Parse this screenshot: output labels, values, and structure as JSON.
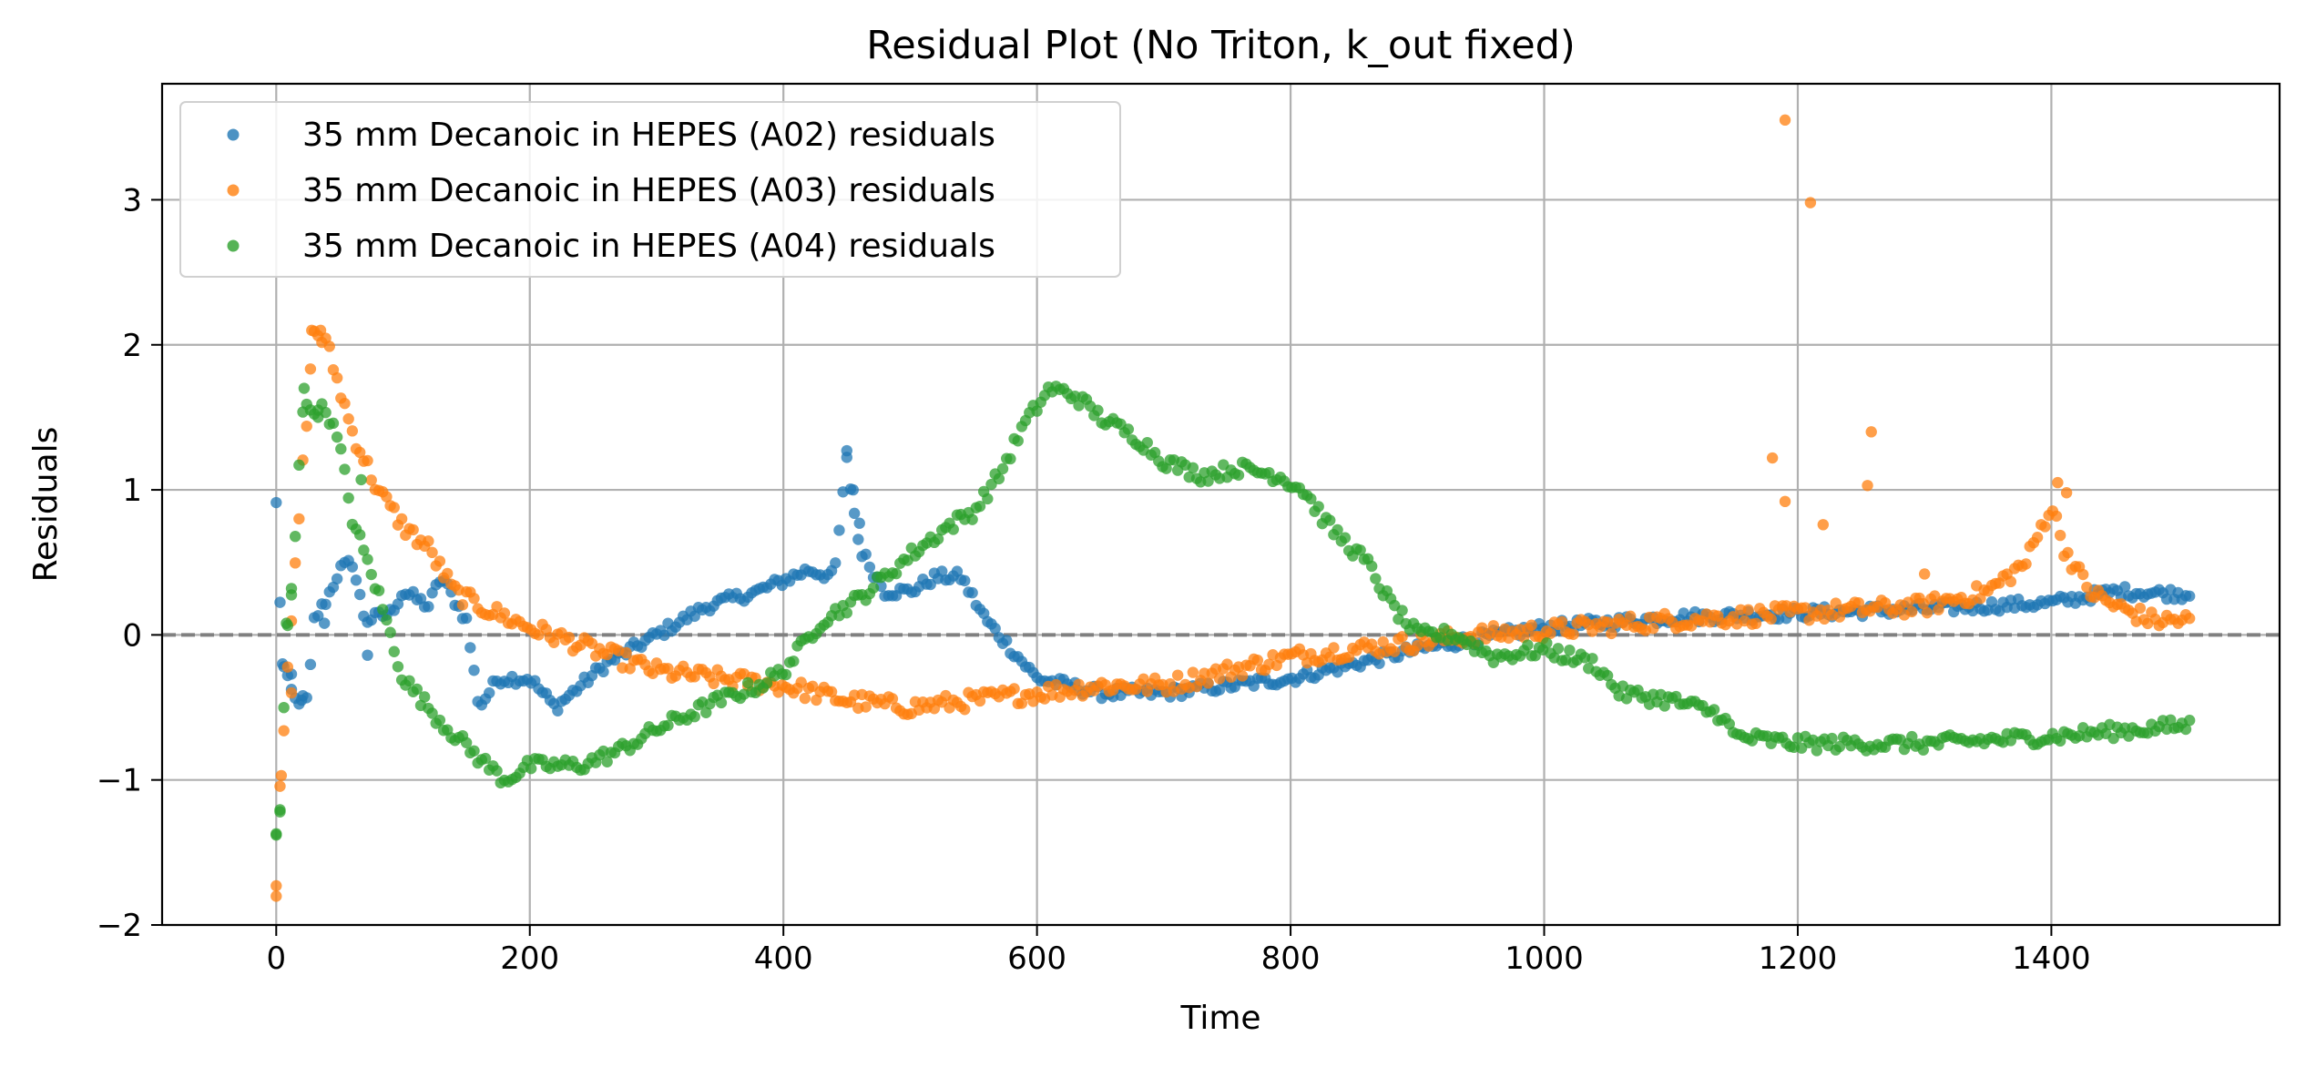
{
  "chart_data": {
    "type": "scatter",
    "title": "Residual Plot (No Triton, k_out fixed)",
    "xlabel": "Time",
    "ylabel": "Residuals",
    "xlim": [
      -90,
      1580
    ],
    "ylim": [
      -2,
      3.8
    ],
    "xticks": [
      0,
      200,
      400,
      600,
      800,
      1000,
      1200,
      1400
    ],
    "yticks": [
      -2,
      -1,
      0,
      1,
      2,
      3
    ],
    "xtick_labels": [
      "0",
      "200",
      "400",
      "600",
      "800",
      "1000",
      "1200",
      "1400"
    ],
    "ytick_labels": [
      "−2",
      "−1",
      "0",
      "1",
      "2",
      "3"
    ],
    "grid": true,
    "legend_position": "top-left",
    "reference_line": {
      "y": 0,
      "style": "dashed",
      "color": "#808080"
    },
    "series": [
      {
        "name": "35 mm Decanoic in HEPES (A02) residuals",
        "color": "#1f77b4",
        "knots": [
          [
            0,
            0.9
          ],
          [
            5,
            -0.2
          ],
          [
            10,
            -0.35
          ],
          [
            15,
            -0.45
          ],
          [
            25,
            -0.45
          ],
          [
            30,
            0.1
          ],
          [
            40,
            0.25
          ],
          [
            50,
            0.45
          ],
          [
            60,
            0.5
          ],
          [
            70,
            0.1
          ],
          [
            90,
            0.15
          ],
          [
            100,
            0.3
          ],
          [
            120,
            0.2
          ],
          [
            130,
            0.4
          ],
          [
            150,
            0.1
          ],
          [
            160,
            -0.5
          ],
          [
            175,
            -0.3
          ],
          [
            200,
            -0.3
          ],
          [
            220,
            -0.5
          ],
          [
            260,
            -0.2
          ],
          [
            300,
            0.0
          ],
          [
            340,
            0.2
          ],
          [
            380,
            0.3
          ],
          [
            420,
            0.45
          ],
          [
            440,
            0.4
          ],
          [
            450,
            1.2
          ],
          [
            460,
            0.6
          ],
          [
            480,
            0.3
          ],
          [
            500,
            0.3
          ],
          [
            520,
            0.4
          ],
          [
            540,
            0.4
          ],
          [
            560,
            0.1
          ],
          [
            580,
            -0.1
          ],
          [
            600,
            -0.3
          ],
          [
            650,
            -0.4
          ],
          [
            700,
            -0.4
          ],
          [
            800,
            -0.3
          ],
          [
            900,
            -0.1
          ],
          [
            950,
            -0.02
          ],
          [
            1000,
            0.05
          ],
          [
            1100,
            0.12
          ],
          [
            1200,
            0.15
          ],
          [
            1300,
            0.18
          ],
          [
            1400,
            0.22
          ],
          [
            1450,
            0.3
          ],
          [
            1510,
            0.28
          ]
        ],
        "noise": 0.04,
        "outliers": [
          [
            450,
            1.27
          ],
          [
            455,
            1.0
          ],
          [
            460,
            0.77
          ],
          [
            5,
            -0.2
          ],
          [
            12,
            -0.27
          ],
          [
            20,
            -0.45
          ],
          [
            38,
            0.08
          ],
          [
            72,
            -0.14
          ]
        ]
      },
      {
        "name": "35 mm Decanoic in HEPES (A03) residuals",
        "color": "#ff7f0e",
        "knots": [
          [
            0,
            -1.75
          ],
          [
            3,
            -1.0
          ],
          [
            8,
            -0.4
          ],
          [
            15,
            0.45
          ],
          [
            20,
            1.05
          ],
          [
            25,
            1.6
          ],
          [
            30,
            2.1
          ],
          [
            40,
            2.0
          ],
          [
            50,
            1.7
          ],
          [
            60,
            1.4
          ],
          [
            80,
            1.0
          ],
          [
            100,
            0.75
          ],
          [
            120,
            0.6
          ],
          [
            140,
            0.3
          ],
          [
            160,
            0.2
          ],
          [
            200,
            0.05
          ],
          [
            250,
            -0.1
          ],
          [
            300,
            -0.25
          ],
          [
            350,
            -0.3
          ],
          [
            400,
            -0.35
          ],
          [
            450,
            -0.45
          ],
          [
            500,
            -0.5
          ],
          [
            550,
            -0.45
          ],
          [
            600,
            -0.4
          ],
          [
            650,
            -0.35
          ],
          [
            700,
            -0.35
          ],
          [
            750,
            -0.25
          ],
          [
            800,
            -0.15
          ],
          [
            850,
            -0.1
          ],
          [
            900,
            -0.05
          ],
          [
            950,
            0.0
          ],
          [
            1000,
            0.03
          ],
          [
            1100,
            0.1
          ],
          [
            1200,
            0.15
          ],
          [
            1300,
            0.2
          ],
          [
            1350,
            0.3
          ],
          [
            1380,
            0.5
          ],
          [
            1400,
            0.9
          ],
          [
            1410,
            0.6
          ],
          [
            1430,
            0.3
          ],
          [
            1450,
            0.2
          ],
          [
            1480,
            0.1
          ],
          [
            1510,
            0.1
          ]
        ],
        "noise": 0.06,
        "outliers": [
          [
            1190,
            3.55
          ],
          [
            1210,
            2.98
          ],
          [
            1180,
            1.22
          ],
          [
            1190,
            0.92
          ],
          [
            1220,
            0.76
          ],
          [
            1258,
            1.4
          ],
          [
            1255,
            1.03
          ],
          [
            1300,
            0.42
          ],
          [
            1405,
            1.05
          ],
          [
            1412,
            0.98
          ],
          [
            0,
            -1.73
          ],
          [
            4,
            -0.97
          ],
          [
            12,
            -0.4
          ],
          [
            28,
            2.1
          ],
          [
            35,
            2.1
          ]
        ]
      },
      {
        "name": "35 mm Decanoic in HEPES (A04) residuals",
        "color": "#2ca02c",
        "knots": [
          [
            0,
            -1.4
          ],
          [
            3,
            -1.2
          ],
          [
            8,
            -0.05
          ],
          [
            12,
            0.3
          ],
          [
            15,
            0.7
          ],
          [
            20,
            1.55
          ],
          [
            30,
            1.55
          ],
          [
            40,
            1.55
          ],
          [
            50,
            1.3
          ],
          [
            60,
            0.8
          ],
          [
            80,
            0.3
          ],
          [
            100,
            -0.3
          ],
          [
            130,
            -0.6
          ],
          [
            160,
            -0.85
          ],
          [
            180,
            -1.0
          ],
          [
            200,
            -0.9
          ],
          [
            240,
            -0.9
          ],
          [
            270,
            -0.8
          ],
          [
            300,
            -0.65
          ],
          [
            350,
            -0.45
          ],
          [
            380,
            -0.35
          ],
          [
            400,
            -0.25
          ],
          [
            430,
            0.1
          ],
          [
            460,
            0.25
          ],
          [
            480,
            0.4
          ],
          [
            500,
            0.55
          ],
          [
            530,
            0.75
          ],
          [
            550,
            0.85
          ],
          [
            570,
            1.1
          ],
          [
            590,
            1.45
          ],
          [
            610,
            1.7
          ],
          [
            630,
            1.65
          ],
          [
            650,
            1.5
          ],
          [
            680,
            1.35
          ],
          [
            700,
            1.2
          ],
          [
            730,
            1.1
          ],
          [
            760,
            1.15
          ],
          [
            790,
            1.1
          ],
          [
            810,
            1.0
          ],
          [
            830,
            0.75
          ],
          [
            860,
            0.5
          ],
          [
            880,
            0.2
          ],
          [
            900,
            0.0
          ],
          [
            930,
            0.0
          ],
          [
            960,
            -0.15
          ],
          [
            1000,
            -0.1
          ],
          [
            1040,
            -0.2
          ],
          [
            1060,
            -0.4
          ],
          [
            1100,
            -0.45
          ],
          [
            1140,
            -0.55
          ],
          [
            1150,
            -0.7
          ],
          [
            1200,
            -0.75
          ],
          [
            1300,
            -0.75
          ],
          [
            1400,
            -0.7
          ],
          [
            1510,
            -0.62
          ]
        ],
        "noise": 0.05,
        "outliers": [
          [
            0,
            -1.38
          ],
          [
            3,
            -1.22
          ],
          [
            8,
            0.08
          ],
          [
            12,
            0.32
          ],
          [
            22,
            1.7
          ],
          [
            33,
            1.55
          ],
          [
            67,
            1.07
          ]
        ]
      }
    ]
  }
}
